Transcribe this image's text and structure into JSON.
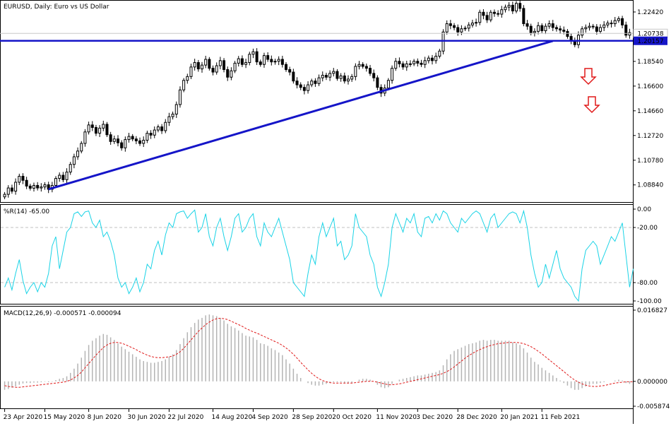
{
  "colors": {
    "background": "#ffffff",
    "frame": "#000000",
    "candle": "#000000",
    "trendline": "#1515c8",
    "hline": "#1515c8",
    "williams": "#19d3e6",
    "macd_hist": "#b4b4b4",
    "macd_signal": "#e01818",
    "arrow": "#e01818",
    "price_label_bg": "#1515c8",
    "price_label_text": "#ffffff"
  },
  "icons": {
    "down_arrow": "down-arrow-icon"
  },
  "chart_data": [
    {
      "type": "candlestick",
      "title": "EURUSD, Daily:  Euro vs US Dollar",
      "series": [
        {
          "name": "EURUSD",
          "close": [
            1.081,
            1.086,
            1.0835,
            1.0905,
            1.0952,
            1.092,
            1.0875,
            1.0858,
            1.088,
            1.086,
            1.0868,
            1.0885,
            1.085,
            1.088,
            1.0935,
            1.096,
            1.0925,
            1.0985,
            1.1045,
            1.1105,
            1.115,
            1.121,
            1.13,
            1.1355,
            1.1335,
            1.129,
            1.133,
            1.136,
            1.1278,
            1.1225,
            1.1245,
            1.1215,
            1.1175,
            1.124,
            1.1265,
            1.1245,
            1.123,
            1.121,
            1.1235,
            1.129,
            1.1275,
            1.1315,
            1.134,
            1.131,
            1.1375,
            1.142,
            1.144,
            1.1515,
            1.163,
            1.1705,
            1.1735,
            1.181,
            1.1845,
            1.1795,
            1.1825,
            1.187,
            1.18,
            1.177,
            1.182,
            1.186,
            1.179,
            1.173,
            1.178,
            1.184,
            1.1875,
            1.183,
            1.1845,
            1.191,
            1.193,
            1.185,
            1.183,
            1.19,
            1.187,
            1.185,
            1.1855,
            1.187,
            1.183,
            1.179,
            1.177,
            1.17,
            1.167,
            1.165,
            1.1625,
            1.167,
            1.17,
            1.168,
            1.1725,
            1.1745,
            1.173,
            1.176,
            1.1775,
            1.172,
            1.174,
            1.17,
            1.1715,
            1.1735,
            1.1815,
            1.183,
            1.1815,
            1.18,
            1.176,
            1.1725,
            1.165,
            1.1605,
            1.1645,
            1.1705,
            1.18,
            1.1855,
            1.1835,
            1.181,
            1.1835,
            1.1835,
            1.1855,
            1.184,
            1.183,
            1.186,
            1.188,
            1.186,
            1.1895,
            1.1935,
            1.2085,
            1.215,
            1.2135,
            1.212,
            1.2085,
            1.211,
            1.2115,
            1.214,
            1.2155,
            1.216,
            1.224,
            1.2215,
            1.218,
            1.224,
            1.223,
            1.2225,
            1.226,
            1.228,
            1.2295,
            1.225,
            1.231,
            1.227,
            1.215,
            1.213,
            1.208,
            1.209,
            1.2135,
            1.2095,
            1.213,
            1.215,
            1.212,
            1.211,
            1.21,
            1.209,
            1.205,
            1.2015,
            1.1985,
            1.206,
            1.211,
            1.212,
            1.213,
            1.2125,
            1.209,
            1.212,
            1.214,
            1.2155,
            1.215,
            1.2175,
            1.219,
            1.214,
            1.206,
            1.208
          ]
        }
      ],
      "x_tick_labels": [
        "23 Apr 2020",
        "15 May 2020",
        "8 Jun 2020",
        "30 Jun 2020",
        "22 Jul 2020",
        "14 Aug 2020",
        "4 Sep 2020",
        "28 Sep 2020",
        "20 Oct 2020",
        "11 Nov 2020",
        "3 Dec 2020",
        "28 Dec 2020",
        "20 Jan 2021",
        "11 Feb 2021"
      ],
      "y_tick_labels": [
        "1.22420",
        "1.20738",
        "1.20157",
        "1.18540",
        "1.16600",
        "1.14660",
        "1.12720",
        "1.10780",
        "1.08840"
      ],
      "ylim": [
        1.0755,
        1.2325
      ],
      "annotations": {
        "horizontal_line": 1.20157,
        "trendline": [
          1.085,
          1.2015
        ],
        "current_price_label": "1.20157",
        "secondary_price_label": "1.20738",
        "down_arrows": 2
      },
      "grid": false
    },
    {
      "type": "line",
      "title": "%R(14) -65.00",
      "ylim": [
        -100,
        0
      ],
      "y_tick_labels": [
        "0.00",
        "-20.00",
        "-80.00",
        "-100.00"
      ],
      "levels": [
        -20,
        -80
      ],
      "series": [
        {
          "values": [
            -85,
            -75,
            -88,
            -70,
            -55,
            -78,
            -92,
            -85,
            -80,
            -90,
            -80,
            -85,
            -70,
            -40,
            -30,
            -65,
            -45,
            -25,
            -20,
            -5,
            -3,
            -8,
            -3,
            -2,
            -15,
            -20,
            -12,
            -30,
            -25,
            -35,
            -50,
            -75,
            -85,
            -80,
            -92,
            -85,
            -75,
            -90,
            -80,
            -60,
            -65,
            -45,
            -35,
            -50,
            -28,
            -15,
            -20,
            -5,
            -3,
            -2,
            -10,
            -5,
            -1,
            -25,
            -20,
            -5,
            -30,
            -40,
            -20,
            -10,
            -30,
            -45,
            -30,
            -10,
            -5,
            -25,
            -20,
            -10,
            -5,
            -30,
            -40,
            -15,
            -25,
            -30,
            -20,
            -10,
            -25,
            -40,
            -55,
            -80,
            -85,
            -90,
            -95,
            -70,
            -50,
            -60,
            -30,
            -15,
            -30,
            -20,
            -10,
            -40,
            -35,
            -55,
            -50,
            -40,
            -5,
            -20,
            -25,
            -30,
            -50,
            -60,
            -85,
            -95,
            -80,
            -60,
            -20,
            -5,
            -15,
            -25,
            -10,
            -15,
            -5,
            -25,
            -30,
            -10,
            -8,
            -15,
            -5,
            -12,
            -2,
            -5,
            -15,
            -20,
            -25,
            -10,
            -15,
            -10,
            -5,
            -2,
            -5,
            -15,
            -25,
            -10,
            -5,
            -20,
            -15,
            -10,
            -5,
            -3,
            -5,
            -15,
            -2,
            -20,
            -50,
            -70,
            -85,
            -80,
            -60,
            -75,
            -60,
            -45,
            -65,
            -75,
            -80,
            -85,
            -95,
            -100,
            -65,
            -45,
            -40,
            -35,
            -40,
            -60,
            -50,
            -40,
            -30,
            -35,
            -25,
            -15,
            -50,
            -85,
            -65
          ]
        }
      ]
    },
    {
      "type": "bar",
      "title": "MACD(12,26,9) -0.000571 -0.000094",
      "ylim": [
        -0.005874,
        0.016827
      ],
      "y_tick_labels": [
        "0.016827",
        "0.000000",
        "-0.005874"
      ],
      "series": [
        {
          "name": "MACD",
          "values": [
            -0.002,
            -0.0018,
            -0.0015,
            -0.0012,
            -0.0008,
            -0.0005,
            -0.0004,
            -0.0004,
            -0.0003,
            -0.0003,
            -0.0002,
            -0.0001,
            -0.0002,
            -0.0001,
            0.0003,
            0.0006,
            0.0008,
            0.0012,
            0.002,
            0.003,
            0.0042,
            0.0056,
            0.0072,
            0.0086,
            0.0096,
            0.0102,
            0.0108,
            0.0112,
            0.011,
            0.0104,
            0.0098,
            0.009,
            0.0082,
            0.0076,
            0.007,
            0.0064,
            0.0058,
            0.0052,
            0.0048,
            0.0046,
            0.0044,
            0.0044,
            0.0046,
            0.0048,
            0.0052,
            0.0058,
            0.0064,
            0.0074,
            0.0088,
            0.0102,
            0.0116,
            0.0128,
            0.0138,
            0.0146,
            0.015,
            0.0156,
            0.0158,
            0.0156,
            0.0154,
            0.015,
            0.0144,
            0.0136,
            0.013,
            0.0126,
            0.012,
            0.0114,
            0.0108,
            0.0106,
            0.0104,
            0.0098,
            0.009,
            0.0088,
            0.0084,
            0.0078,
            0.0074,
            0.0068,
            0.0062,
            0.0052,
            0.0042,
            0.003,
            0.0018,
            0.0008,
            0.0,
            -0.0004,
            -0.0008,
            -0.001,
            -0.001,
            -0.0008,
            -0.0006,
            -0.0004,
            -0.0002,
            -0.0002,
            -0.0002,
            -0.0004,
            -0.0004,
            -0.0004,
            0.0,
            0.0004,
            0.0006,
            0.0006,
            0.0004,
            0.0,
            -0.0008,
            -0.0014,
            -0.0016,
            -0.0014,
            -0.0006,
            0.0,
            0.0004,
            0.0006,
            0.0008,
            0.001,
            0.0012,
            0.0014,
            0.0014,
            0.0016,
            0.0018,
            0.002,
            0.0022,
            0.0026,
            0.0038,
            0.0052,
            0.0064,
            0.0072,
            0.0076,
            0.008,
            0.0084,
            0.0088,
            0.009,
            0.0092,
            0.0096,
            0.0098,
            0.0096,
            0.0098,
            0.0098,
            0.0096,
            0.0096,
            0.0096,
            0.0096,
            0.0092,
            0.009,
            0.0086,
            0.0078,
            0.0068,
            0.0056,
            0.0046,
            0.004,
            0.0032,
            0.0026,
            0.002,
            0.0014,
            0.0008,
            0.0002,
            -0.0004,
            -0.001,
            -0.0016,
            -0.002,
            -0.002,
            -0.0016,
            -0.0012,
            -0.0008,
            -0.0006,
            -0.0006,
            -0.0004,
            -0.0002,
            0.0,
            0.0,
            0.0002,
            0.0004,
            0.0002,
            -0.0004,
            -0.0006
          ]
        },
        {
          "name": "Signal",
          "values": [
            -0.001,
            -0.0012,
            -0.0013,
            -0.0014,
            -0.0014,
            -0.0013,
            -0.0012,
            -0.0011,
            -0.001,
            -0.0009,
            -0.0008,
            -0.0007,
            -0.0006,
            -0.0005,
            -0.0004,
            -0.0003,
            -0.0002,
            0.0,
            0.0003,
            0.0008,
            0.0014,
            0.0022,
            0.0032,
            0.0042,
            0.0052,
            0.0062,
            0.0071,
            0.008,
            0.0086,
            0.009,
            0.0092,
            0.0092,
            0.009,
            0.0087,
            0.0083,
            0.0079,
            0.0075,
            0.007,
            0.0066,
            0.0062,
            0.0059,
            0.0057,
            0.0056,
            0.0056,
            0.0057,
            0.0058,
            0.006,
            0.0064,
            0.007,
            0.0078,
            0.0088,
            0.0098,
            0.0108,
            0.0118,
            0.0126,
            0.0134,
            0.014,
            0.0145,
            0.0148,
            0.0149,
            0.0148,
            0.0146,
            0.0142,
            0.0138,
            0.0134,
            0.013,
            0.0125,
            0.0121,
            0.0117,
            0.0114,
            0.011,
            0.0106,
            0.0102,
            0.0098,
            0.0094,
            0.009,
            0.0085,
            0.0079,
            0.0072,
            0.0064,
            0.0055,
            0.0045,
            0.0036,
            0.0027,
            0.0019,
            0.0012,
            0.0006,
            0.0002,
            -0.0001,
            -0.0003,
            -0.0004,
            -0.0004,
            -0.0004,
            -0.0004,
            -0.0004,
            -0.0004,
            -0.0003,
            -0.0002,
            -0.0001,
            0.0,
            0.0,
            0.0,
            -0.0002,
            -0.0004,
            -0.0006,
            -0.0008,
            -0.0008,
            -0.0007,
            -0.0006,
            -0.0004,
            -0.0002,
            0.0,
            0.0002,
            0.0004,
            0.0006,
            0.0008,
            0.001,
            0.0012,
            0.0014,
            0.0016,
            0.0019,
            0.0023,
            0.0028,
            0.0034,
            0.0041,
            0.0048,
            0.0055,
            0.0061,
            0.0066,
            0.0071,
            0.0075,
            0.0079,
            0.0082,
            0.0085,
            0.0087,
            0.0089,
            0.009,
            0.0091,
            0.0092,
            0.0092,
            0.0092,
            0.0091,
            0.0089,
            0.0086,
            0.0082,
            0.0077,
            0.0071,
            0.0065,
            0.0058,
            0.0051,
            0.0044,
            0.0037,
            0.003,
            0.0023,
            0.0016,
            0.0009,
            0.0003,
            -0.0002,
            -0.0006,
            -0.0009,
            -0.0011,
            -0.0012,
            -0.0012,
            -0.0011,
            -0.001,
            -0.0008,
            -0.0006,
            -0.0004,
            -0.0003,
            -0.0002,
            -0.0001,
            -0.0001,
            -0.0001
          ]
        }
      ]
    }
  ]
}
